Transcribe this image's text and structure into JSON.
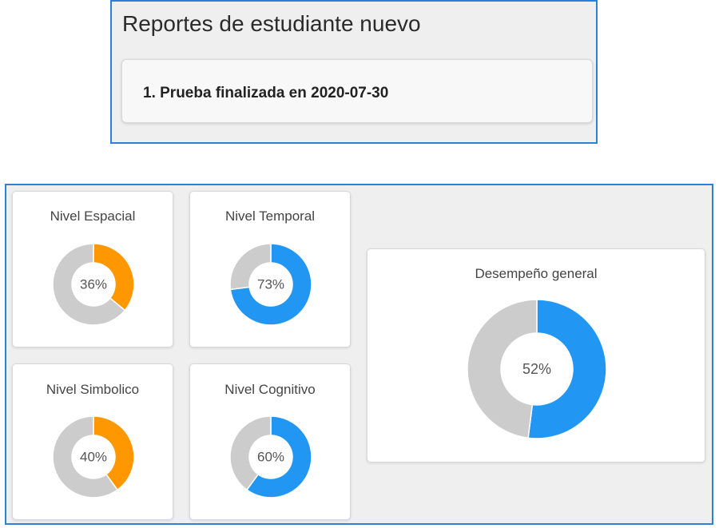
{
  "header": {
    "title": "Reportes de estudiante nuevo",
    "reports": [
      {
        "label": "1. Prueba finalizada en 2020-07-30"
      }
    ]
  },
  "chart_data": [
    {
      "type": "pie",
      "title": "Nivel Espacial",
      "values": [
        36,
        64
      ],
      "center_label": "36%",
      "colors": [
        "#ff9800",
        "#cccccc"
      ]
    },
    {
      "type": "pie",
      "title": "Nivel Temporal",
      "values": [
        73,
        27
      ],
      "center_label": "73%",
      "colors": [
        "#2196f3",
        "#cccccc"
      ]
    },
    {
      "type": "pie",
      "title": "Nivel Simbolico",
      "values": [
        40,
        60
      ],
      "center_label": "40%",
      "colors": [
        "#ff9800",
        "#cccccc"
      ]
    },
    {
      "type": "pie",
      "title": "Nivel Cognitivo",
      "values": [
        60,
        40
      ],
      "center_label": "60%",
      "colors": [
        "#2196f3",
        "#cccccc"
      ]
    },
    {
      "type": "pie",
      "title": "Desempeño general",
      "values": [
        52,
        48
      ],
      "center_label": "52%",
      "colors": [
        "#2196f3",
        "#cccccc"
      ]
    }
  ]
}
